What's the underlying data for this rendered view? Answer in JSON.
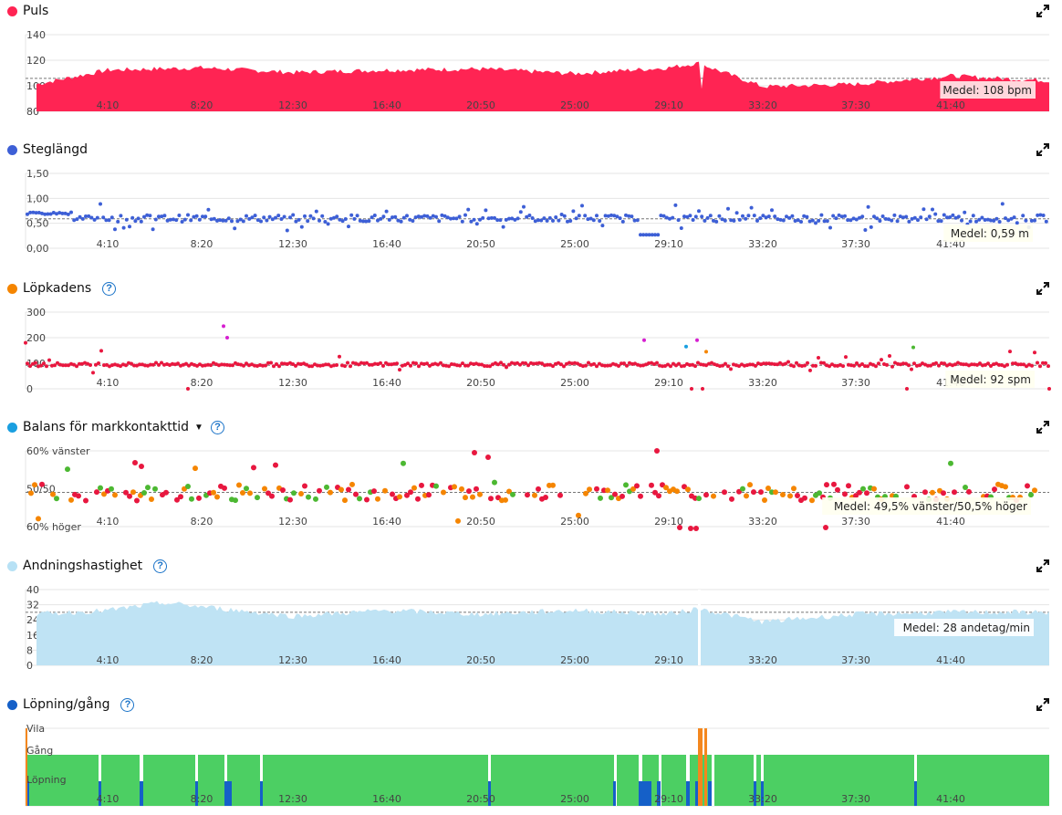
{
  "x_ticks": [
    "4:10",
    "8:20",
    "12:30",
    "16:40",
    "20:50",
    "25:00",
    "29:10",
    "33:20",
    "37:30",
    "41:40"
  ],
  "colors": {
    "puls": "#ff2453",
    "steglangd": "#3d5fd6",
    "kadens_dot": "#f58500",
    "kadens_points": "#e8173f",
    "balans_dot": "#1a9fe0",
    "andning": "#bfe3f4",
    "andning_dot": "#b7e1f5",
    "lopning_dot": "#1560c8",
    "green": "#4ccf63",
    "orange": "#f4871e",
    "blue": "#1560c8"
  },
  "sections": {
    "puls": {
      "title": "Puls",
      "mean": "Medel: 108 bpm",
      "yticks": [
        "140",
        "120",
        "100",
        "80"
      ]
    },
    "steglangd": {
      "title": "Steglängd",
      "mean": "Medel: 0,59 m",
      "yticks": [
        "1,50",
        "1,00",
        "0,50",
        "0,00"
      ]
    },
    "kadens": {
      "title": "Löpkadens",
      "mean": "Medel: 92 spm",
      "yticks": [
        "300",
        "200",
        "100",
        "0"
      ]
    },
    "balans": {
      "title": "Balans för markkontakttid",
      "mean": "Medel: 49,5% vänster/50,5% höger",
      "yticks": [
        "60% vänster",
        "50/50",
        "60% höger"
      ]
    },
    "andning": {
      "title": "Andningshastighet",
      "mean": "Medel: 28 andetag/min",
      "yticks": [
        "40",
        "32",
        "24",
        "16",
        "8",
        "0"
      ]
    },
    "lopning": {
      "title": "Löpning/gång",
      "yticks": [
        "Vila",
        "Gång",
        "Löpning"
      ]
    }
  },
  "icons": {
    "expand": "expand-arrows-icon",
    "help": "question-circle-icon",
    "caret": "caret-down-icon"
  },
  "chart_data": [
    {
      "type": "area",
      "title": "Puls",
      "x": [
        "0:00",
        "4:10",
        "8:20",
        "12:30",
        "16:40",
        "20:50",
        "25:00",
        "29:10",
        "30:50",
        "33:20",
        "37:30",
        "41:40",
        "46:00"
      ],
      "ylim": [
        80,
        145
      ],
      "mean": 108,
      "series": [
        {
          "name": "Puls",
          "values": [
            103,
            115,
            117,
            113,
            115,
            116,
            112,
            117,
            121,
            101,
            103,
            110,
            106
          ]
        }
      ]
    },
    {
      "type": "scatter",
      "title": "Steglängd",
      "ylim": [
        0,
        1.5
      ],
      "mean": 0.59,
      "series": [
        {
          "name": "Steglängd",
          "values_range": [
            0.1,
            1.05
          ],
          "typical": 0.6
        }
      ]
    },
    {
      "type": "scatter",
      "title": "Löpkadens",
      "ylim": [
        0,
        300
      ],
      "mean": 92,
      "series": [
        {
          "name": "Löpkadens",
          "typical": 95,
          "values_range": [
            0,
            250
          ]
        }
      ]
    },
    {
      "type": "scatter",
      "title": "Balans för markkontakttid",
      "mean": "49,5% vänster/50,5% höger",
      "series": [
        {
          "name": "Balans",
          "values_range": [
            "60% vänster",
            "60% höger"
          ]
        }
      ]
    },
    {
      "type": "area",
      "title": "Andningshastighet",
      "ylim": [
        0,
        40
      ],
      "mean": 28,
      "x": [
        "0:00",
        "4:10",
        "8:20",
        "12:30",
        "16:40",
        "20:50",
        "25:00",
        "29:10",
        "30:50",
        "33:20",
        "37:30",
        "41:40",
        "46:00"
      ],
      "series": [
        {
          "name": "Andningshastighet",
          "values": [
            27,
            29,
            33,
            26,
            29,
            27,
            29,
            27,
            30,
            23,
            27,
            28,
            28
          ]
        }
      ]
    },
    {
      "type": "area",
      "title": "Löpning/gång",
      "categories": [
        "Vila",
        "Gång",
        "Löpning"
      ],
      "series": [
        {
          "name": "Löpning/gång",
          "dominant": "Gång"
        }
      ]
    }
  ]
}
